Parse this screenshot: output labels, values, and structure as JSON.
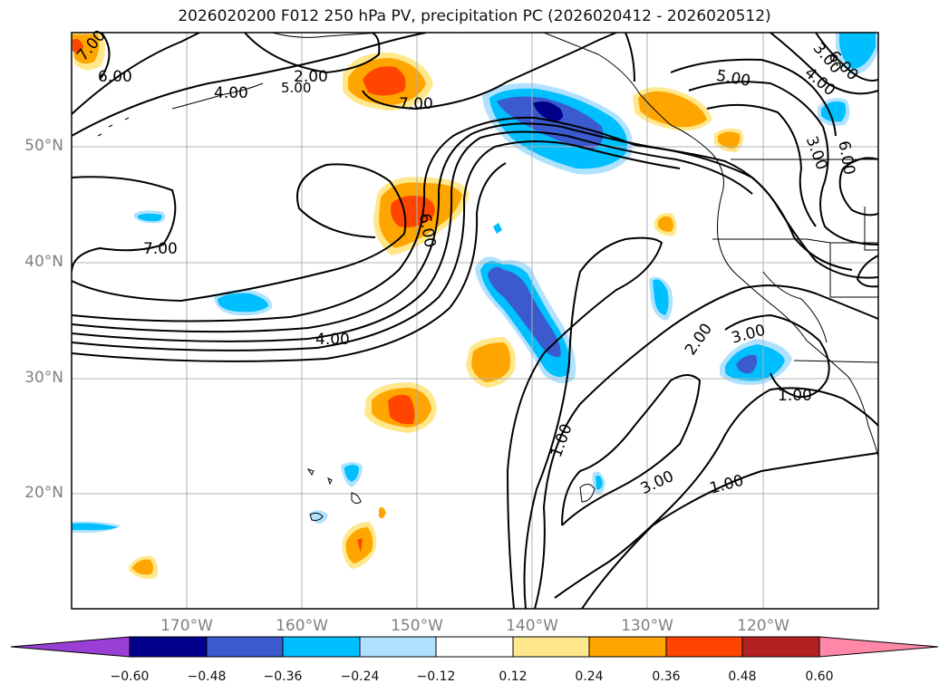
{
  "title": "2026020200 F012 250 hPa PV, precipitation PC (2026020412 - 2026020512)",
  "lat_labels": [
    "50°N",
    "40°N",
    "30°N",
    "20°N"
  ],
  "lon_labels": [
    "170°W",
    "160°W",
    "150°W",
    "140°W",
    "130°W",
    "120°W"
  ],
  "contour_labels": [
    "7.00",
    "6.00",
    "4.00",
    "2.00",
    "5.00",
    "7.00",
    "5.00",
    "3.00",
    "4.00",
    "6.00",
    "3.00",
    "6.00",
    "7.00",
    "6.00",
    "4.00",
    "2.00",
    "3.00",
    "1.00",
    "1.00",
    "3.00",
    "1.00"
  ],
  "colorbar": {
    "ticks": [
      "−0.60",
      "−0.48",
      "−0.36",
      "−0.24",
      "−0.12",
      "0.12",
      "0.24",
      "0.36",
      "0.48",
      "0.60"
    ],
    "colors": [
      "#9a3fd6",
      "#00008b",
      "#3a5acd",
      "#00bfff",
      "#b0e2ff",
      "#ffffff",
      "#ffe88c",
      "#ffa500",
      "#ff4500",
      "#b22222",
      "#ff88a8"
    ]
  }
}
